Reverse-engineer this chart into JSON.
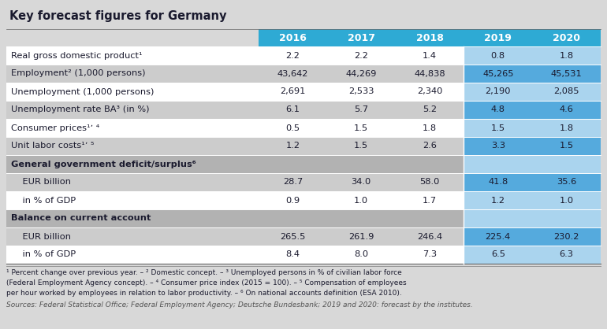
{
  "title": "Key forecast figures for Germany",
  "columns": [
    "",
    "2016",
    "2017",
    "2018",
    "2019",
    "2020"
  ],
  "rows": [
    {
      "label": "Real gross domestic product¹",
      "values": [
        "2.2",
        "2.2",
        "1.4",
        "0.8",
        "1.8"
      ],
      "style": "white"
    },
    {
      "label": "Employment² (1,000 persons)",
      "values": [
        "43,642",
        "44,269",
        "44,838",
        "45,265",
        "45,531"
      ],
      "style": "gray"
    },
    {
      "label": "Unemployment (1,000 persons)",
      "values": [
        "2,691",
        "2,533",
        "2,340",
        "2,190",
        "2,085"
      ],
      "style": "white"
    },
    {
      "label": "Unemployment rate BA³ (in %)",
      "values": [
        "6.1",
        "5.7",
        "5.2",
        "4.8",
        "4.6"
      ],
      "style": "gray"
    },
    {
      "label": "Consumer prices¹ʼ ⁴",
      "values": [
        "0.5",
        "1.5",
        "1.8",
        "1.5",
        "1.8"
      ],
      "style": "white"
    },
    {
      "label": "Unit labor costs¹ʼ ⁵",
      "values": [
        "1.2",
        "1.5",
        "2.6",
        "3.3",
        "1.5"
      ],
      "style": "gray"
    },
    {
      "label": "General government deficit/surplus⁶",
      "values": [
        "",
        "",
        "",
        "",
        ""
      ],
      "style": "section"
    },
    {
      "label": "    EUR billion",
      "values": [
        "28.7",
        "34.0",
        "58.0",
        "41.8",
        "35.6"
      ],
      "style": "gray"
    },
    {
      "label": "    in % of GDP",
      "values": [
        "0.9",
        "1.0",
        "1.7",
        "1.2",
        "1.0"
      ],
      "style": "white"
    },
    {
      "label": "Balance on current account",
      "values": [
        "",
        "",
        "",
        "",
        ""
      ],
      "style": "section"
    },
    {
      "label": "    EUR billion",
      "values": [
        "265.5",
        "261.9",
        "246.4",
        "225.4",
        "230.2"
      ],
      "style": "gray"
    },
    {
      "label": "    in % of GDP",
      "values": [
        "8.4",
        "8.0",
        "7.3",
        "6.5",
        "6.3"
      ],
      "style": "white"
    }
  ],
  "footnote_lines": [
    "¹ Percent change over previous year. – ² Domestic concept. – ³ Unemployed persons in % of civilian labor force",
    "(Federal Employment Agency concept). – ⁴ Consumer price index (2015 = 100). – ⁵ Compensation of employees",
    "per hour worked by employees in relation to labor productivity. – ⁶ On national accounts definition (ESA 2010)."
  ],
  "sources_line": "Sources: Federal Statistical Office; Federal Employment Agency; Deutsche Bundesbank; 2019 and 2020: forecast by the institutes.",
  "bg_color": "#d8d8d8",
  "title_bg": "#d8d8d8",
  "header_bg": "#2eaad4",
  "header_fg": "#ffffff",
  "white_bg": "#ffffff",
  "gray_bg": "#cccccc",
  "section_bg": "#b2b2b2",
  "hi_white_bg": "#aad4ee",
  "hi_gray_bg": "#55aadd",
  "hi_section_bg": "#aad4ee",
  "data_fg": "#1a1a2e",
  "section_fg": "#1a1a2e",
  "footnote_fg": "#1a1a2e",
  "sources_fg": "#555555"
}
